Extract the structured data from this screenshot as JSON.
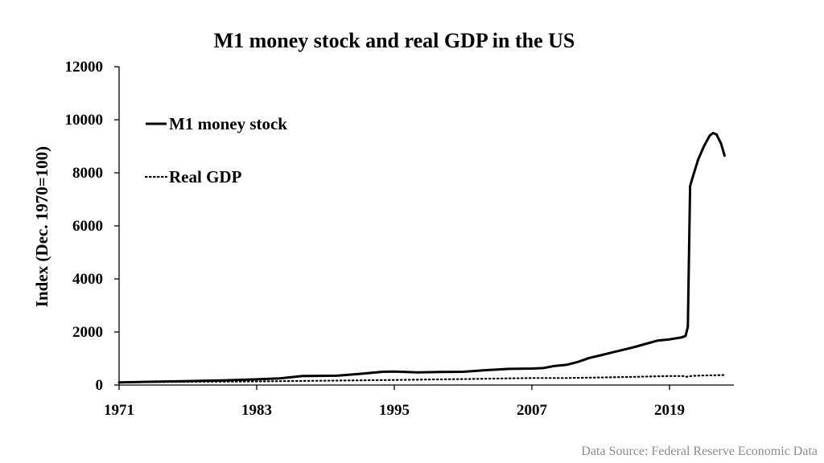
{
  "chart_data": {
    "type": "line",
    "title": "M1 money stock and real GDP in the US",
    "xlabel": "",
    "ylabel": "Index (Dec. 1970=100)",
    "xlim": [
      1971,
      2024
    ],
    "ylim": [
      0,
      12000
    ],
    "x_ticks": [
      1971,
      1983,
      1995,
      2007,
      2019
    ],
    "y_ticks": [
      0,
      2000,
      4000,
      6000,
      8000,
      10000,
      12000
    ],
    "grid": false,
    "legend_position": "top-left",
    "series": [
      {
        "name": "M1 money stock",
        "style": "solid",
        "color": "#000000",
        "points": [
          [
            1971,
            100
          ],
          [
            1974,
            125
          ],
          [
            1977,
            150
          ],
          [
            1980,
            175
          ],
          [
            1983,
            215
          ],
          [
            1985,
            250
          ],
          [
            1987,
            340
          ],
          [
            1990,
            350
          ],
          [
            1992,
            420
          ],
          [
            1994,
            500
          ],
          [
            1995,
            510
          ],
          [
            1997,
            480
          ],
          [
            1999,
            490
          ],
          [
            2001,
            500
          ],
          [
            2003,
            560
          ],
          [
            2005,
            610
          ],
          [
            2007,
            620
          ],
          [
            2008,
            640
          ],
          [
            2009,
            720
          ],
          [
            2010,
            760
          ],
          [
            2011,
            870
          ],
          [
            2012,
            1020
          ],
          [
            2013,
            1120
          ],
          [
            2014,
            1230
          ],
          [
            2015,
            1330
          ],
          [
            2016,
            1440
          ],
          [
            2017,
            1560
          ],
          [
            2018,
            1680
          ],
          [
            2019,
            1720
          ],
          [
            2020,
            1790
          ],
          [
            2020.4,
            1850
          ],
          [
            2020.6,
            2200
          ],
          [
            2020.8,
            7500
          ],
          [
            2021,
            7800
          ],
          [
            2021.5,
            8500
          ],
          [
            2022,
            9000
          ],
          [
            2022.5,
            9400
          ],
          [
            2022.8,
            9500
          ],
          [
            2023.1,
            9450
          ],
          [
            2023.5,
            9100
          ],
          [
            2023.8,
            8650
          ]
        ]
      },
      {
        "name": "Real GDP",
        "style": "dotted",
        "color": "#000000",
        "points": [
          [
            1971,
            100
          ],
          [
            1977,
            120
          ],
          [
            1983,
            135
          ],
          [
            1989,
            165
          ],
          [
            1995,
            190
          ],
          [
            2001,
            225
          ],
          [
            2007,
            265
          ],
          [
            2010,
            265
          ],
          [
            2013,
            285
          ],
          [
            2016,
            310
          ],
          [
            2019,
            340
          ],
          [
            2020.3,
            340
          ],
          [
            2020.5,
            310
          ],
          [
            2021,
            345
          ],
          [
            2022,
            360
          ],
          [
            2023.8,
            375
          ]
        ]
      }
    ]
  },
  "source_note": "Data Source: Federal Reserve Economic Data"
}
